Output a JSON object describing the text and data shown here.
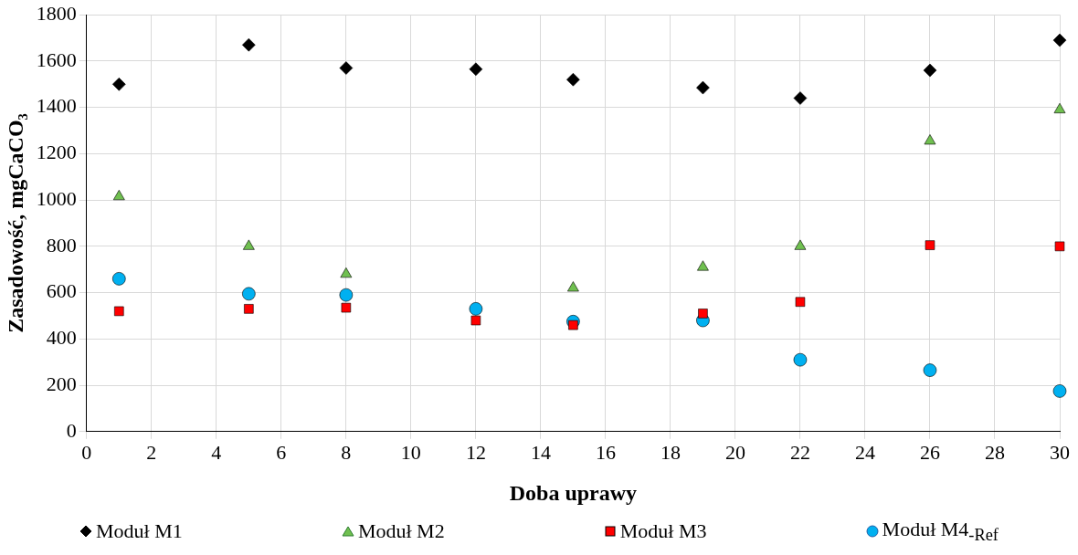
{
  "chart_data": {
    "type": "scatter",
    "xlabel": "Doba uprawy",
    "ylabel": "Zasadowość, mgCaCO₃",
    "x": [
      1,
      5,
      8,
      12,
      15,
      19,
      22,
      26,
      30
    ],
    "xlim": [
      0,
      30
    ],
    "xticks": [
      0,
      2,
      4,
      6,
      8,
      10,
      12,
      14,
      16,
      18,
      20,
      22,
      24,
      26,
      28,
      30
    ],
    "ylim": [
      0,
      1800
    ],
    "yticks": [
      0,
      200,
      400,
      600,
      800,
      1000,
      1200,
      1400,
      1600,
      1800
    ],
    "grid": true,
    "legend": "bottom",
    "series": [
      {
        "name": "Moduł M1",
        "color": "#000000",
        "marker": "diamond",
        "values": [
          1500,
          1670,
          1570,
          1565,
          1520,
          1485,
          1440,
          1560,
          1690
        ]
      },
      {
        "name": "Moduł M2",
        "color": "#70c050",
        "marker": "triangle",
        "values": [
          1015,
          800,
          680,
          null,
          620,
          710,
          800,
          1255,
          1390
        ]
      },
      {
        "name": "Moduł M3",
        "color": "#ff0000",
        "marker": "square",
        "values": [
          520,
          530,
          535,
          480,
          460,
          510,
          560,
          805,
          800
        ]
      },
      {
        "name": "Moduł M4$_{-Ref}$",
        "color": "#00b0f0",
        "marker": "circle",
        "values": [
          660,
          595,
          590,
          530,
          475,
          480,
          310,
          265,
          175
        ]
      }
    ]
  }
}
